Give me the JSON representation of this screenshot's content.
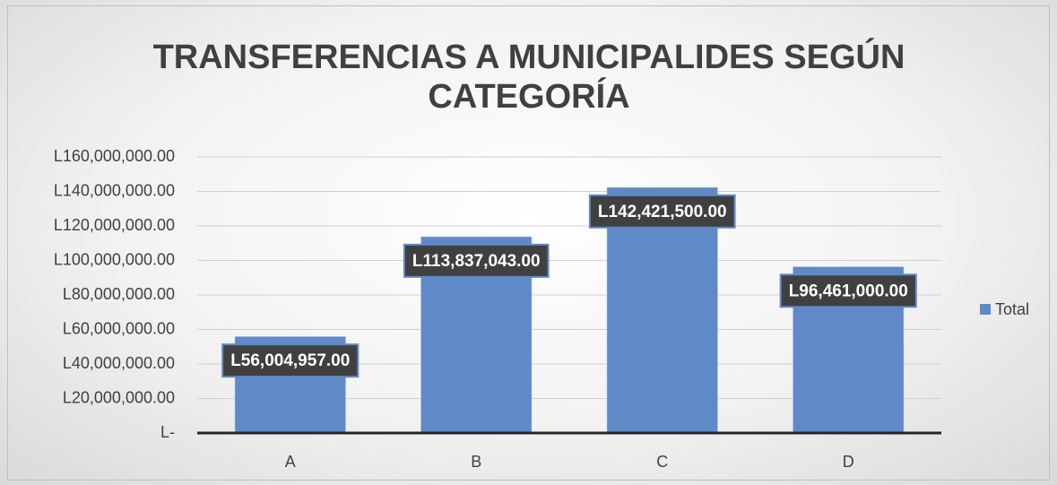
{
  "chart_data": {
    "type": "bar",
    "title": "TRANSFERENCIAS A MUNICIPALIDES SEGÚN CATEGORÍA",
    "categories": [
      "A",
      "B",
      "C",
      "D"
    ],
    "series": [
      {
        "name": "Total",
        "color": "#5f8ac7",
        "values": [
          56004957,
          113837043,
          142421500,
          96461000
        ],
        "value_labels": [
          "L56,004,957.00",
          "L113,837,043.00",
          "L142,421,500.00",
          "L96,461,000.00"
        ]
      }
    ],
    "ylim": [
      0,
      160000000
    ],
    "yticks": [
      {
        "value": 0,
        "label": "L-"
      },
      {
        "value": 20000000,
        "label": "L20,000,000.00"
      },
      {
        "value": 40000000,
        "label": "L40,000,000.00"
      },
      {
        "value": 60000000,
        "label": "L60,000,000.00"
      },
      {
        "value": 80000000,
        "label": "L80,000,000.00"
      },
      {
        "value": 100000000,
        "label": "L100,000,000.00"
      },
      {
        "value": 120000000,
        "label": "L120,000,000.00"
      },
      {
        "value": 140000000,
        "label": "L140,000,000.00"
      },
      {
        "value": 160000000,
        "label": "L160,000,000.00"
      }
    ],
    "grid": true,
    "legend": "right"
  }
}
